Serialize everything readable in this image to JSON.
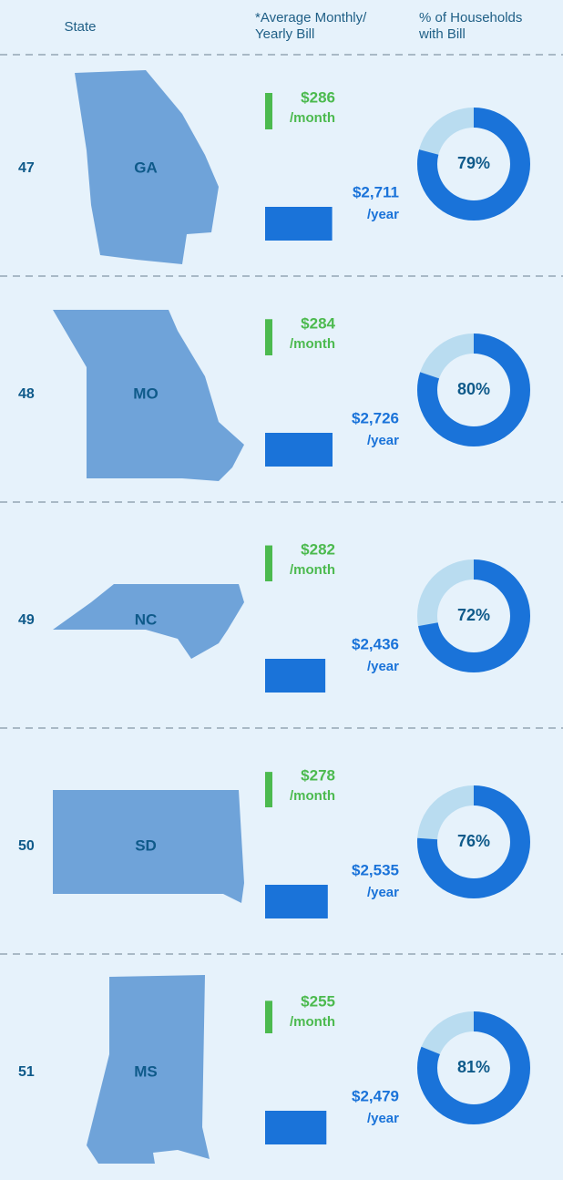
{
  "header": {
    "state": "State",
    "bill": [
      "*Average Monthly/",
      "Yearly Bill"
    ],
    "households": [
      "% of Households",
      "with Bill"
    ]
  },
  "units": {
    "month": "/month",
    "year": "/year"
  },
  "rows": [
    {
      "rank": 47,
      "state": "GA",
      "monthly": 286,
      "monthly_label": "$286",
      "yearly": 2711,
      "yearly_label": "$2,711",
      "households": 79,
      "households_label": "79%"
    },
    {
      "rank": 48,
      "state": "MO",
      "monthly": 284,
      "monthly_label": "$284",
      "yearly": 2726,
      "yearly_label": "$2,726",
      "households": 80,
      "households_label": "80%"
    },
    {
      "rank": 49,
      "state": "NC",
      "monthly": 282,
      "monthly_label": "$282",
      "yearly": 2436,
      "yearly_label": "$2,436",
      "households": 72,
      "households_label": "72%"
    },
    {
      "rank": 50,
      "state": "SD",
      "monthly": 278,
      "monthly_label": "$278",
      "yearly": 2535,
      "yearly_label": "$2,535",
      "households": 76,
      "households_label": "76%"
    },
    {
      "rank": 51,
      "state": "MS",
      "monthly": 255,
      "monthly_label": "$255",
      "yearly": 2479,
      "yearly_label": "$2,479",
      "households": 81,
      "households_label": "81%"
    }
  ]
}
